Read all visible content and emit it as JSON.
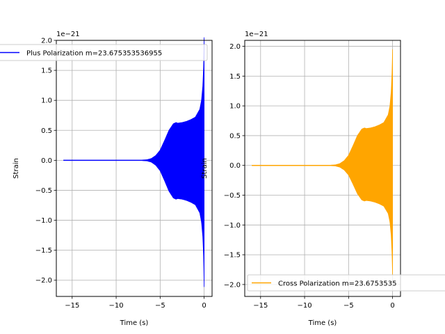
{
  "chart_data": [
    {
      "type": "line",
      "series": [
        {
          "name": "Plus Polarization m=23.675353536955",
          "color": "#0000ff",
          "envelope": {
            "x": [
              -16,
              -10,
              -7,
              -6.5,
              -6,
              -5.5,
              -5,
              -4.5,
              -4,
              -3.5,
              -3.2,
              -3,
              -2.5,
              -2,
              -1.5,
              -1,
              -0.5,
              -0.3,
              -0.15,
              -0.05,
              0
            ],
            "amplitude": [
              0,
              0,
              0.005,
              0.01,
              0.03,
              0.08,
              0.17,
              0.33,
              0.5,
              0.61,
              0.63,
              0.62,
              0.63,
              0.65,
              0.68,
              0.72,
              0.85,
              1.0,
              1.25,
              1.6,
              2.05
            ]
          }
        }
      ],
      "xlabel": "Time (s)",
      "ylabel": "Strain",
      "offset_label": "1e−21",
      "xlim": [
        -16.8,
        0.9
      ],
      "ylim": [
        -2.27,
        2.0
      ],
      "xticks": [
        -15,
        -10,
        -5,
        0
      ],
      "xtick_labels": [
        "−15",
        "−10",
        "−5",
        "0"
      ],
      "yticks": [
        -2.0,
        -1.5,
        -1.0,
        -0.5,
        0.0,
        0.5,
        1.0,
        1.5,
        2.0
      ],
      "ytick_labels": [
        "−2.0",
        "−1.5",
        "−1.0",
        "−0.5",
        "0.0",
        "0.5",
        "1.0",
        "1.5",
        "2.0"
      ],
      "grid": true,
      "legend_placement": "upper-center"
    },
    {
      "type": "line",
      "series": [
        {
          "name": "Cross Polarization m=23.6753535",
          "color": "#ffa500",
          "envelope": {
            "x": [
              -16,
              -10,
              -7,
              -6.5,
              -6,
              -5.5,
              -5,
              -4.5,
              -4,
              -3.5,
              -3.2,
              -3,
              -2.5,
              -2,
              -1.5,
              -1,
              -0.5,
              -0.3,
              -0.15,
              -0.05,
              0
            ],
            "amplitude": [
              0,
              0,
              0.005,
              0.01,
              0.03,
              0.08,
              0.17,
              0.33,
              0.5,
              0.61,
              0.63,
              0.62,
              0.63,
              0.65,
              0.68,
              0.72,
              0.85,
              1.0,
              1.25,
              1.6,
              1.95
            ]
          }
        }
      ],
      "xlabel": "Time (s)",
      "ylabel": "Strain",
      "offset_label": "1e−21",
      "xlim": [
        -16.8,
        0.9
      ],
      "ylim": [
        -2.2,
        2.1
      ],
      "xticks": [
        -15,
        -10,
        -5,
        0
      ],
      "xtick_labels": [
        "−15",
        "−10",
        "−5",
        "0"
      ],
      "yticks": [
        -2.0,
        -1.5,
        -1.0,
        -0.5,
        0.0,
        0.5,
        1.0,
        1.5,
        2.0
      ],
      "ytick_labels": [
        "−2.0",
        "−1.5",
        "−1.0",
        "−0.5",
        "0.0",
        "0.5",
        "1.0",
        "1.5",
        "2.0"
      ],
      "grid": true,
      "legend_placement": "lower-center"
    }
  ]
}
